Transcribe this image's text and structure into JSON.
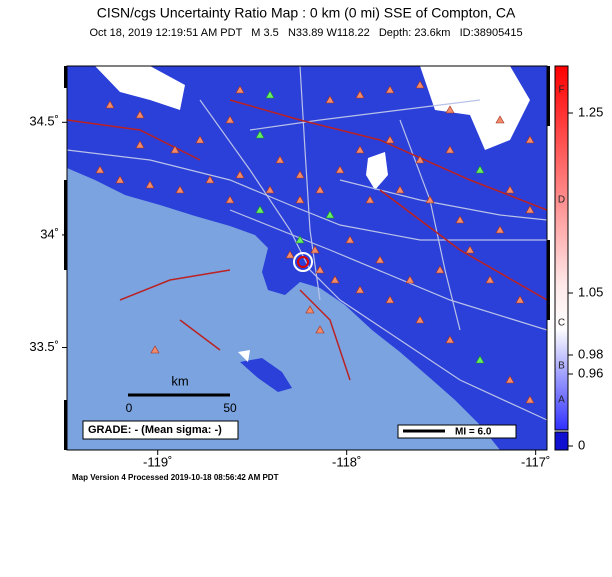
{
  "header": {
    "title": "CISN/cgs Uncertainty Ratio Map : 0 km (0 mi) SSE of Compton, CA",
    "subtitle": "Oct 18, 2019 12:19:51 AM PDT   M 3.5   N33.89 W118.22   Depth: 23.6km   ID:38905415"
  },
  "map": {
    "xlim": [
      -119.48,
      -116.94
    ],
    "ylim": [
      33.045,
      34.75
    ],
    "xticks": [
      {
        "value": -119,
        "label": "-119˚"
      },
      {
        "value": -118,
        "label": "-118˚"
      },
      {
        "value": -117,
        "label": "-117˚"
      }
    ],
    "yticks": [
      {
        "value": 34.5,
        "label": "34.5˚"
      },
      {
        "value": 34,
        "label": "34˚"
      },
      {
        "value": 33.5,
        "label": "33.5˚"
      }
    ],
    "scale_bar": {
      "unit": "km",
      "labels": [
        "0",
        "50"
      ]
    },
    "grade": "GRADE: - (Mean sigma: -)",
    "mi_legend": "MI = 6.0"
  },
  "colorbar": {
    "ticks": [
      1.25,
      1.05,
      0.98,
      0.96,
      0
    ],
    "grades": [
      "F",
      "D",
      "C",
      "B",
      "A"
    ]
  },
  "footer": "Map Version 4 Processed 2019-10-18 08:56:42 AM PDT"
}
